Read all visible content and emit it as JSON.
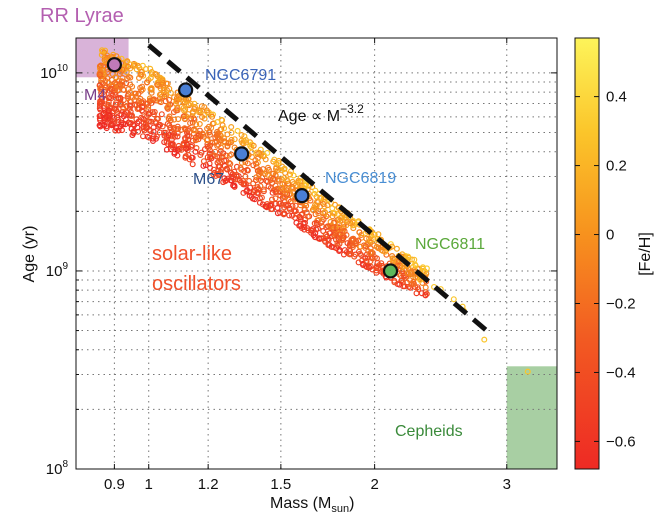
{
  "chart_data": {
    "type": "scatter",
    "x_scale": "log",
    "y_scale": "log",
    "xlim": [
      0.8,
      3.5
    ],
    "ylim": [
      100000000,
      15000000000
    ],
    "xlabel": {
      "text": "Mass (M",
      "sub": "sun",
      "close": ")"
    },
    "ylabel": "Age (yr)",
    "x_ticks": [
      0.9,
      1,
      1.2,
      1.5,
      2,
      3
    ],
    "x_tick_labels": [
      "0.9",
      "1",
      "1.2",
      "1.5",
      "2",
      "3"
    ],
    "y_ticks": [
      {
        "value": 100000000,
        "base": "10",
        "exp": "8"
      },
      {
        "value": 1000000000,
        "base": "10",
        "exp": "9"
      },
      {
        "value": 10000000000,
        "base": "10",
        "exp": "10"
      }
    ],
    "grid": "dotted",
    "colorbar": {
      "label": "[Fe/H]",
      "range": [
        -0.68,
        0.57
      ],
      "ticks": [
        0.4,
        0.2,
        0,
        -0.2,
        -0.4,
        -0.6
      ],
      "tick_labels": [
        "0.4",
        "0.2",
        "0",
        "−0.2",
        "−0.4",
        "−0.6"
      ]
    },
    "relation_line": {
      "label": "Age ∝ M",
      "exponent": "−3.2",
      "x_range": [
        1.0,
        2.85
      ],
      "normalization_age_at_1Msun": 13800000000,
      "slope": -3.2
    },
    "clusters": [
      {
        "name": "M4",
        "mass": 0.9,
        "age": 11000000000,
        "fill": "#c07ab8",
        "label_color": "#7a3f8a"
      },
      {
        "name": "NGC6791",
        "mass": 1.12,
        "age": 8200000000,
        "fill": "#4a7fd4",
        "label_color": "#3a63b8"
      },
      {
        "name": "M67",
        "mass": 1.33,
        "age": 3900000000,
        "fill": "#4a7fd4",
        "label_color": "#2a4f8a"
      },
      {
        "name": "NGC6819",
        "mass": 1.6,
        "age": 2400000000,
        "fill": "#4a7fd4",
        "label_color": "#4a8fd4"
      },
      {
        "name": "NGC6811",
        "mass": 2.1,
        "age": 1000000000,
        "fill": "#5cb85c",
        "label_color": "#5aa83a"
      }
    ],
    "regions": [
      {
        "name": "RR Lyrae",
        "x_range": [
          0.8,
          0.94
        ],
        "y_range": [
          9500000000,
          15000000000
        ],
        "color": "#d9b3d9",
        "label_color": "#b45fb0"
      },
      {
        "name": "Cepheids",
        "x_range": [
          3.0,
          3.5
        ],
        "y_range": [
          100000000,
          330000000
        ],
        "color": "#a8cfa3",
        "label_color": "#3a8a3a"
      }
    ],
    "solar_like_label": [
      "solar-like",
      "oscillators"
    ],
    "solar_like_color": "#f0502a",
    "scatter_band": {
      "description_points": [
        {
          "mass": 0.86,
          "age_mid": 8500000000
        },
        {
          "mass": 1.0,
          "age_mid": 7000000000
        },
        {
          "mass": 1.2,
          "age_mid": 4500000000
        },
        {
          "mass": 1.5,
          "age_mid": 2600000000
        },
        {
          "mass": 1.8,
          "age_mid": 1600000000
        },
        {
          "mass": 2.2,
          "age_mid": 1000000000
        },
        {
          "mass": 2.6,
          "age_mid": 700000000
        }
      ]
    }
  }
}
